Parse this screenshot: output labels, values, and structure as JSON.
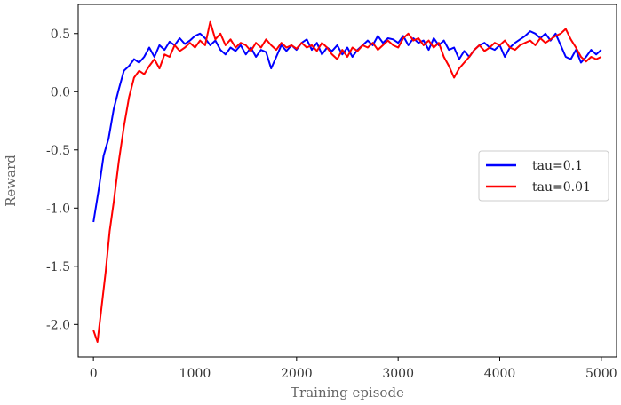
{
  "chart_data": {
    "type": "line",
    "title": "",
    "xlabel": "Training episode",
    "ylabel": "Reward",
    "xlim": [
      -150,
      5150
    ],
    "ylim": [
      -2.28,
      0.75
    ],
    "xticks": [
      0,
      1000,
      2000,
      3000,
      4000,
      5000
    ],
    "xtick_labels": [
      "0",
      "1000",
      "2000",
      "3000",
      "4000",
      "5000"
    ],
    "yticks": [
      -2.0,
      -1.5,
      -1.0,
      -0.5,
      0.0,
      0.5
    ],
    "ytick_labels": [
      "-2.0",
      "-1.5",
      "-1.0",
      "-0.5",
      "0.0",
      "0.5"
    ],
    "grid": false,
    "legend_position": "center-right",
    "series": [
      {
        "name": "tau=0.1",
        "color": "#0000ff",
        "x": [
          0,
          50,
          100,
          150,
          200,
          250,
          300,
          350,
          400,
          450,
          500,
          550,
          600,
          650,
          700,
          750,
          800,
          850,
          900,
          950,
          1000,
          1050,
          1100,
          1150,
          1200,
          1250,
          1300,
          1350,
          1400,
          1450,
          1500,
          1550,
          1600,
          1650,
          1700,
          1750,
          1800,
          1850,
          1900,
          1950,
          2000,
          2050,
          2100,
          2150,
          2200,
          2250,
          2300,
          2350,
          2400,
          2450,
          2500,
          2550,
          2600,
          2650,
          2700,
          2750,
          2800,
          2850,
          2900,
          2950,
          3000,
          3050,
          3100,
          3150,
          3200,
          3250,
          3300,
          3350,
          3400,
          3450,
          3500,
          3550,
          3600,
          3650,
          3700,
          3750,
          3800,
          3850,
          3900,
          3950,
          4000,
          4050,
          4100,
          4150,
          4200,
          4250,
          4300,
          4350,
          4400,
          4450,
          4500,
          4550,
          4600,
          4650,
          4700,
          4750,
          4800,
          4850,
          4900,
          4950,
          5000
        ],
        "y": [
          -1.12,
          -0.85,
          -0.55,
          -0.4,
          -0.15,
          0.02,
          0.18,
          0.22,
          0.28,
          0.25,
          0.3,
          0.38,
          0.3,
          0.4,
          0.36,
          0.43,
          0.4,
          0.46,
          0.41,
          0.44,
          0.48,
          0.5,
          0.46,
          0.4,
          0.44,
          0.36,
          0.32,
          0.38,
          0.35,
          0.4,
          0.32,
          0.38,
          0.3,
          0.36,
          0.34,
          0.2,
          0.3,
          0.4,
          0.35,
          0.4,
          0.36,
          0.42,
          0.45,
          0.36,
          0.42,
          0.32,
          0.38,
          0.35,
          0.4,
          0.32,
          0.38,
          0.3,
          0.36,
          0.4,
          0.44,
          0.4,
          0.48,
          0.42,
          0.46,
          0.45,
          0.42,
          0.48,
          0.4,
          0.46,
          0.42,
          0.44,
          0.36,
          0.46,
          0.4,
          0.44,
          0.36,
          0.38,
          0.28,
          0.35,
          0.3,
          0.36,
          0.4,
          0.42,
          0.38,
          0.36,
          0.4,
          0.3,
          0.38,
          0.42,
          0.45,
          0.48,
          0.52,
          0.5,
          0.46,
          0.5,
          0.44,
          0.5,
          0.4,
          0.3,
          0.28,
          0.36,
          0.25,
          0.3,
          0.36,
          0.32,
          0.36
        ]
      },
      {
        "name": "tau=0.01",
        "color": "#ff0000",
        "x": [
          0,
          40,
          80,
          120,
          160,
          200,
          250,
          300,
          350,
          400,
          450,
          500,
          550,
          600,
          650,
          700,
          750,
          800,
          850,
          900,
          950,
          1000,
          1050,
          1100,
          1150,
          1200,
          1250,
          1300,
          1350,
          1400,
          1450,
          1500,
          1550,
          1600,
          1650,
          1700,
          1750,
          1800,
          1850,
          1900,
          1950,
          2000,
          2050,
          2100,
          2150,
          2200,
          2250,
          2300,
          2350,
          2400,
          2450,
          2500,
          2550,
          2600,
          2650,
          2700,
          2750,
          2800,
          2850,
          2900,
          2950,
          3000,
          3050,
          3100,
          3150,
          3200,
          3250,
          3300,
          3350,
          3400,
          3450,
          3500,
          3550,
          3600,
          3650,
          3700,
          3750,
          3800,
          3850,
          3900,
          3950,
          4000,
          4050,
          4100,
          4150,
          4200,
          4250,
          4300,
          4350,
          4400,
          4450,
          4500,
          4550,
          4600,
          4650,
          4700,
          4750,
          4800,
          4850,
          4900,
          4950,
          5000
        ],
        "y": [
          -2.05,
          -2.15,
          -1.85,
          -1.55,
          -1.2,
          -0.95,
          -0.6,
          -0.3,
          -0.05,
          0.12,
          0.18,
          0.15,
          0.22,
          0.28,
          0.2,
          0.32,
          0.3,
          0.4,
          0.35,
          0.38,
          0.42,
          0.38,
          0.44,
          0.4,
          0.6,
          0.45,
          0.5,
          0.4,
          0.45,
          0.38,
          0.42,
          0.4,
          0.35,
          0.42,
          0.38,
          0.45,
          0.4,
          0.36,
          0.42,
          0.38,
          0.4,
          0.37,
          0.42,
          0.38,
          0.4,
          0.35,
          0.42,
          0.38,
          0.32,
          0.28,
          0.36,
          0.3,
          0.38,
          0.35,
          0.4,
          0.38,
          0.42,
          0.36,
          0.4,
          0.44,
          0.4,
          0.38,
          0.46,
          0.5,
          0.44,
          0.46,
          0.4,
          0.44,
          0.38,
          0.42,
          0.3,
          0.22,
          0.12,
          0.2,
          0.25,
          0.3,
          0.36,
          0.4,
          0.35,
          0.38,
          0.42,
          0.4,
          0.44,
          0.38,
          0.36,
          0.4,
          0.42,
          0.44,
          0.4,
          0.46,
          0.42,
          0.45,
          0.48,
          0.5,
          0.54,
          0.45,
          0.38,
          0.3,
          0.26,
          0.3,
          0.28,
          0.3
        ]
      }
    ]
  }
}
